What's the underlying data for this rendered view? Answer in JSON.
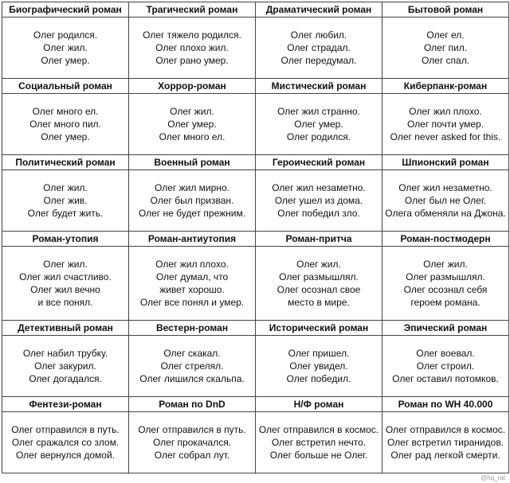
{
  "cells": [
    [
      {
        "title": "Биографический роман",
        "lines": [
          "Олег родился.",
          "Олег жил.",
          "Олег умер."
        ]
      },
      {
        "title": "Трагический роман",
        "lines": [
          "Олег тяжело родился.",
          "Олег плохо жил.",
          "Олег рано умер."
        ]
      },
      {
        "title": "Драматический роман",
        "lines": [
          "Олег любил.",
          "Олег страдал.",
          "Олег передумал."
        ]
      },
      {
        "title": "Бытовой роман",
        "lines": [
          "Олег ел.",
          "Олег пил.",
          "Олег спал."
        ]
      }
    ],
    [
      {
        "title": "Социальный роман",
        "lines": [
          "Олег много ел.",
          "Олег много пил.",
          "Олег умер."
        ]
      },
      {
        "title": "Хоррор-роман",
        "lines": [
          "Олег жил.",
          "Олег умер.",
          "Олег много ел."
        ]
      },
      {
        "title": "Мистический роман",
        "lines": [
          "Олег жил странно.",
          "Олег умер.",
          "Олег родился."
        ]
      },
      {
        "title": "Киберпанк-роман",
        "lines": [
          "Олег жил плохо.",
          "Олег почти умер.",
          "Олег never asked for this."
        ]
      }
    ],
    [
      {
        "title": "Политический роман",
        "lines": [
          "Олег жил.",
          "Олег жив.",
          "Олег будет жить."
        ]
      },
      {
        "title": "Военный роман",
        "lines": [
          "Олег жил мирно.",
          "Олег был призван.",
          "Олег не будет прежним."
        ]
      },
      {
        "title": "Героический роман",
        "lines": [
          "Олег жил незаметно.",
          "Олег ушел из дома.",
          "Олег победил зло."
        ]
      },
      {
        "title": "Шпионский роман",
        "lines": [
          "Олег жил незаметно.",
          "Олег был не Олег.",
          "Олега обменяли на Джона."
        ]
      }
    ],
    [
      {
        "title": "Роман-утопия",
        "lines": [
          "Олег жил.",
          "Олег жил счастливо.",
          "Олег жил вечно",
          "и все понял."
        ]
      },
      {
        "title": "Роман-антиутопия",
        "lines": [
          "Олег жил плохо.",
          "Олег думал, что",
          "живет хорошо.",
          "Олег все понял и умер."
        ]
      },
      {
        "title": "Роман-притча",
        "lines": [
          "Олег жил.",
          "Олег размышлял.",
          "Олег осознал свое",
          "место в мире."
        ]
      },
      {
        "title": "Роман-постмодерн",
        "lines": [
          "Олег жил.",
          "Олег размышлял.",
          "Олег осознал себя",
          "героем романа."
        ]
      }
    ],
    [
      {
        "title": "Детективный роман",
        "lines": [
          "Олег набил трубку.",
          "Олег закурил.",
          "Олег догадался."
        ]
      },
      {
        "title": "Вестерн-роман",
        "lines": [
          "Олег скакал.",
          "Олег стрелял.",
          "Олег лишился скальпа."
        ]
      },
      {
        "title": "Исторический роман",
        "lines": [
          "Олег пришел.",
          "Олег увидел.",
          "Олег победил."
        ]
      },
      {
        "title": "Эпический роман",
        "lines": [
          "Олег воевал.",
          "Олег строил.",
          "Олег оставил потомков."
        ]
      }
    ],
    [
      {
        "title": "Фентези-роман",
        "lines": [
          "Олег отправился в путь.",
          "Олег сражался со злом.",
          "Олег вернулся домой."
        ]
      },
      {
        "title": "Роман по DnD",
        "lines": [
          "Олег отправился в путь.",
          "Олег прокачался.",
          "Олег собрал лут."
        ]
      },
      {
        "title": "Н/Ф роман",
        "lines": [
          "Олег отправился в космос.",
          "Олег встретил нечто.",
          "Олег больше не Олег."
        ]
      },
      {
        "title": "Роман по WH 40.000",
        "lines": [
          "Олег отправился в космос.",
          "Олег встретил тиранидов.",
          "Олег рад легкой смерти."
        ]
      }
    ]
  ],
  "watermark": "@hq_rat"
}
